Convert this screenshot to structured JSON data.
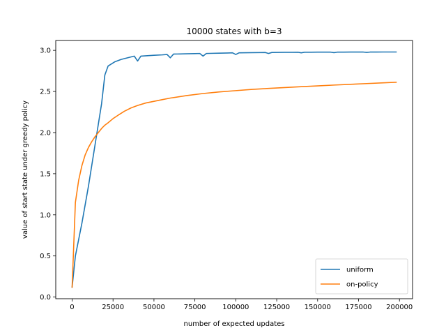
{
  "chart_data": {
    "type": "line",
    "title": "10000 states with b=3",
    "xlabel": "number of expected updates",
    "ylabel": "value of start state under greedy policy",
    "xlim": [
      -10000,
      208000
    ],
    "ylim": [
      -0.02,
      3.12
    ],
    "xticks": [
      0,
      25000,
      50000,
      75000,
      100000,
      125000,
      150000,
      175000,
      200000
    ],
    "xtick_labels": [
      "0",
      "25000",
      "50000",
      "75000",
      "100000",
      "125000",
      "150000",
      "175000",
      "200000"
    ],
    "yticks": [
      0.0,
      0.5,
      1.0,
      1.5,
      2.0,
      2.5,
      3.0
    ],
    "ytick_labels": [
      "0.0",
      "0.5",
      "1.0",
      "1.5",
      "2.0",
      "2.5",
      "3.0"
    ],
    "grid": false,
    "legend": {
      "position": "lower-right"
    },
    "series": [
      {
        "name": "uniform",
        "color": "#1f77b4",
        "x": [
          0,
          2000,
          6000,
          10000,
          14000,
          18000,
          20000,
          22000,
          26000,
          30000,
          34000,
          38000,
          40000,
          42000,
          46000,
          50000,
          55000,
          58000,
          60000,
          62000,
          66000,
          70000,
          75000,
          78000,
          80000,
          82000,
          86000,
          90000,
          95000,
          98000,
          100000,
          102000,
          106000,
          110000,
          115000,
          118000,
          120000,
          122000,
          126000,
          130000,
          135000,
          138000,
          140000,
          142000,
          146000,
          150000,
          155000,
          158000,
          160000,
          162000,
          166000,
          170000,
          175000,
          178000,
          180000,
          182000,
          186000,
          190000,
          195000,
          198000
        ],
        "y": [
          0.12,
          0.5,
          0.9,
          1.35,
          1.85,
          2.35,
          2.7,
          2.81,
          2.86,
          2.89,
          2.91,
          2.93,
          2.87,
          2.93,
          2.935,
          2.94,
          2.945,
          2.95,
          2.91,
          2.955,
          2.956,
          2.958,
          2.96,
          2.962,
          2.93,
          2.962,
          2.964,
          2.966,
          2.968,
          2.97,
          2.95,
          2.97,
          2.971,
          2.972,
          2.973,
          2.974,
          2.962,
          2.974,
          2.975,
          2.976,
          2.976,
          2.977,
          2.97,
          2.977,
          2.977,
          2.978,
          2.978,
          2.978,
          2.972,
          2.978,
          2.978,
          2.979,
          2.979,
          2.979,
          2.975,
          2.979,
          2.979,
          2.98,
          2.98,
          2.98
        ]
      },
      {
        "name": "on-policy",
        "color": "#ff7f0e",
        "x": [
          0,
          2000,
          4000,
          6000,
          8000,
          10000,
          12000,
          14000,
          16000,
          18000,
          20000,
          22000,
          25000,
          28000,
          32000,
          36000,
          40000,
          45000,
          50000,
          55000,
          60000,
          70000,
          80000,
          90000,
          100000,
          110000,
          120000,
          130000,
          140000,
          150000,
          160000,
          170000,
          180000,
          190000,
          198000
        ],
        "y": [
          0.12,
          1.15,
          1.42,
          1.6,
          1.73,
          1.82,
          1.89,
          1.95,
          2.0,
          2.05,
          2.09,
          2.12,
          2.17,
          2.21,
          2.26,
          2.3,
          2.33,
          2.36,
          2.38,
          2.4,
          2.42,
          2.45,
          2.475,
          2.495,
          2.51,
          2.525,
          2.537,
          2.548,
          2.558,
          2.568,
          2.578,
          2.587,
          2.596,
          2.605,
          2.612
        ]
      }
    ]
  }
}
